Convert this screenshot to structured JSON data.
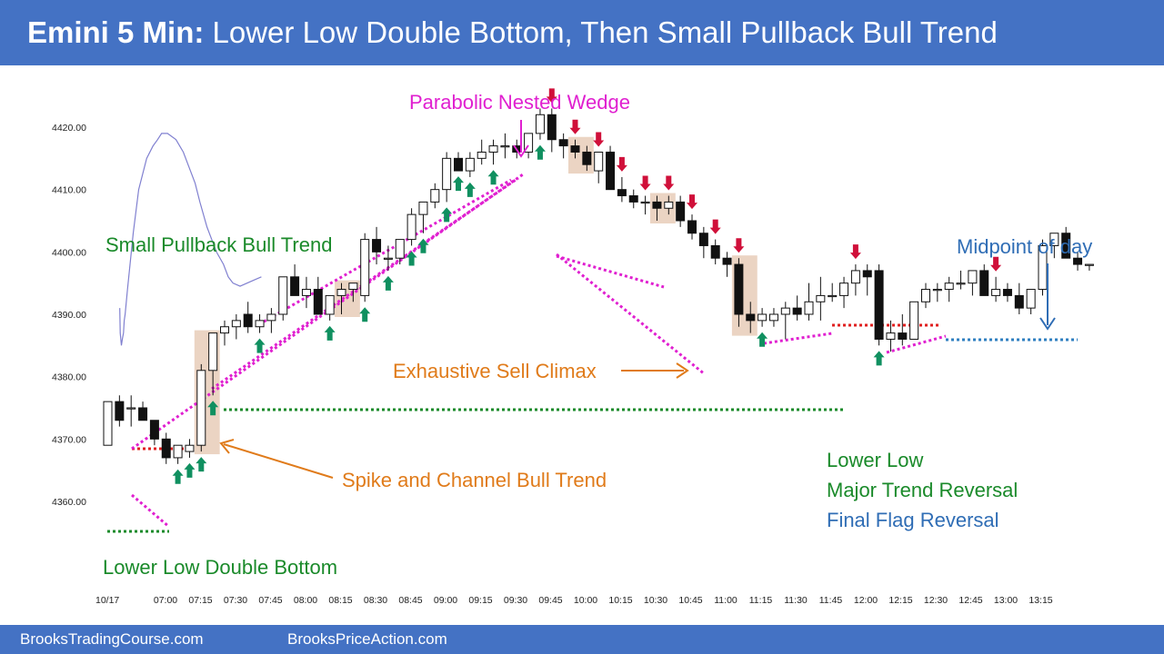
{
  "header": {
    "title_bold": "Emini 5 Min:",
    "title_rest": "Lower Low Double Bottom, Then Small Pullback Bull Trend"
  },
  "footer": {
    "left": "BrooksTradingCourse.com",
    "right": "BrooksPriceAction.com"
  },
  "colors": {
    "header_bg": "#4472c4",
    "green": "#1a8a2a",
    "magenta": "#e020d0",
    "orange": "#e07b1a",
    "blue": "#2f6db5",
    "red_arrow": "#d0103a",
    "green_arrow": "#109060",
    "ema": "#8080d0",
    "highlight": "#e8cdb8"
  },
  "chart_data": {
    "type": "candlestick",
    "date_label": "10/17",
    "ylim": [
      4360,
      4425
    ],
    "y_ticks": [
      {
        "value": 4360,
        "label": "4360.00"
      },
      {
        "value": 4370,
        "label": "4370.00"
      },
      {
        "value": 4380,
        "label": "4380.00"
      },
      {
        "value": 4390,
        "label": "4390.00"
      },
      {
        "value": 4400,
        "label": "4400.00"
      },
      {
        "value": 4410,
        "label": "4410.00"
      },
      {
        "value": 4420,
        "label": "4420.00"
      }
    ],
    "x_ticks": [
      "07:00",
      "07:15",
      "07:30",
      "07:45",
      "08:00",
      "08:15",
      "08:30",
      "08:45",
      "09:00",
      "09:15",
      "09:30",
      "09:45",
      "10:00",
      "10:15",
      "10:30",
      "10:45",
      "11:00",
      "11:15",
      "11:30",
      "11:45",
      "12:00",
      "12:15",
      "12:30",
      "12:45",
      "13:00",
      "13:15"
    ],
    "bars": [
      [
        4369,
        4376,
        4369,
        4376
      ],
      [
        4376,
        4377,
        4372,
        4373
      ],
      [
        4375,
        4377,
        4372,
        4375
      ],
      [
        4375,
        4376,
        4373,
        4373
      ],
      [
        4373,
        4373,
        4369,
        4370
      ],
      [
        4370,
        4371,
        4366,
        4367
      ],
      [
        4367,
        4369,
        4366,
        4369
      ],
      [
        4368,
        4370,
        4367,
        4369
      ],
      [
        4369,
        4382,
        4368,
        4381
      ],
      [
        4381,
        4387,
        4377,
        4387
      ],
      [
        4387,
        4389,
        4385,
        4388
      ],
      [
        4388,
        4390,
        4386,
        4389
      ],
      [
        4390,
        4392,
        4387,
        4388
      ],
      [
        4388,
        4390,
        4387,
        4389
      ],
      [
        4389,
        4391,
        4387,
        4390
      ],
      [
        4390,
        4396,
        4389,
        4396
      ],
      [
        4396,
        4398,
        4393,
        4393
      ],
      [
        4393,
        4396,
        4391,
        4394
      ],
      [
        4394,
        4396,
        4390,
        4390
      ],
      [
        4390,
        4393,
        4389,
        4393
      ],
      [
        4393,
        4395,
        4390,
        4394
      ],
      [
        4394,
        4395,
        4392,
        4395
      ],
      [
        4393,
        4403,
        4392,
        4402
      ],
      [
        4402,
        4404,
        4398,
        4400
      ],
      [
        4399,
        4401,
        4397,
        4399
      ],
      [
        4399,
        4402,
        4398,
        4402
      ],
      [
        4402,
        4407,
        4401,
        4406
      ],
      [
        4406,
        4408,
        4403,
        4408
      ],
      [
        4408,
        4411,
        4407,
        4410
      ],
      [
        4410,
        4416,
        4408,
        4415
      ],
      [
        4415,
        4416,
        4413,
        4413
      ],
      [
        4413,
        4416,
        4412,
        4415
      ],
      [
        4415,
        4418,
        4414,
        4416
      ],
      [
        4416,
        4418,
        4414,
        4417
      ],
      [
        4417,
        4419,
        4415,
        4417
      ],
      [
        4417,
        4418,
        4415,
        4416
      ],
      [
        4416,
        4419,
        4415,
        4419
      ],
      [
        4419,
        4423,
        4418,
        4422
      ],
      [
        4422,
        4423,
        4416,
        4418
      ],
      [
        4418,
        4419,
        4415,
        4417
      ],
      [
        4417,
        4418,
        4415,
        4416
      ],
      [
        4416,
        4417,
        4413,
        4414
      ],
      [
        4413,
        4416,
        4411,
        4416
      ],
      [
        4416,
        4417,
        4410,
        4410
      ],
      [
        4410,
        4412,
        4408,
        4409
      ],
      [
        4409,
        4410,
        4407,
        4408
      ],
      [
        4408,
        4409,
        4406,
        4408
      ],
      [
        4408,
        4409,
        4405,
        4407
      ],
      [
        4407,
        4409,
        4406,
        4408
      ],
      [
        4408,
        4409,
        4404,
        4405
      ],
      [
        4405,
        4406,
        4402,
        4403
      ],
      [
        4403,
        4404,
        4399,
        4401
      ],
      [
        4401,
        4402,
        4398,
        4399
      ],
      [
        4399,
        4400,
        4396,
        4398
      ],
      [
        4398,
        4399,
        4388,
        4390
      ],
      [
        4390,
        4392,
        4387,
        4389
      ],
      [
        4389,
        4391,
        4388,
        4390
      ],
      [
        4389,
        4391,
        4388,
        4390
      ],
      [
        4390,
        4392,
        4386,
        4391
      ],
      [
        4391,
        4393,
        4389,
        4390
      ],
      [
        4390,
        4395,
        4389,
        4392
      ],
      [
        4392,
        4396,
        4389,
        4393
      ],
      [
        4393,
        4395,
        4392,
        4393
      ],
      [
        4393,
        4396,
        4391,
        4395
      ],
      [
        4395,
        4398,
        4393,
        4397
      ],
      [
        4397,
        4398,
        4393,
        4396
      ],
      [
        4397,
        4398,
        4385,
        4386
      ],
      [
        4386,
        4389,
        4384,
        4387
      ],
      [
        4387,
        4390,
        4385,
        4386
      ],
      [
        4386,
        4392,
        4386,
        4392
      ],
      [
        4392,
        4395,
        4391,
        4394
      ],
      [
        4394,
        4395,
        4392,
        4394
      ],
      [
        4394,
        4396,
        4392,
        4395
      ],
      [
        4395,
        4397,
        4394,
        4395
      ],
      [
        4395,
        4397,
        4393,
        4397
      ],
      [
        4397,
        4398,
        4393,
        4393
      ],
      [
        4393,
        4396,
        4392,
        4394
      ],
      [
        4394,
        4395,
        4392,
        4393
      ],
      [
        4393,
        4395,
        4390,
        4391
      ],
      [
        4391,
        4394,
        4390,
        4394
      ],
      [
        4394,
        4402,
        4393,
        4401
      ],
      [
        4401,
        4403,
        4399,
        4403
      ],
      [
        4403,
        4404,
        4399,
        4399
      ],
      [
        4399,
        4400,
        4397,
        4398
      ],
      [
        4398,
        4398,
        4397,
        4398
      ]
    ],
    "ema": [
      [
        4391,
        4391
      ],
      [
        4393,
        4387
      ],
      [
        4398,
        4385
      ],
      [
        4402,
        4386
      ],
      [
        4407,
        4387
      ],
      [
        4410,
        4389
      ],
      [
        4414,
        4390
      ],
      [
        4424,
        4394
      ],
      [
        4432,
        4397
      ],
      [
        4448,
        4403
      ],
      [
        4471,
        4410
      ],
      [
        4505,
        4415
      ],
      [
        4532,
        4417
      ],
      [
        4551,
        4418
      ],
      [
        4568,
        4419
      ],
      [
        4593,
        4419
      ],
      [
        4629,
        4418
      ],
      [
        4660,
        4416
      ],
      [
        4690,
        4413
      ],
      [
        4710,
        4411
      ],
      [
        4730,
        4408
      ],
      [
        4760,
        4404
      ],
      [
        4800,
        4400
      ],
      [
        4830,
        4398
      ],
      [
        4850,
        4396
      ],
      [
        4870,
        4395
      ],
      [
        4900,
        4394.5
      ],
      [
        4960,
        4395.5
      ],
      [
        4990,
        4396
      ]
    ],
    "annotations": {
      "wedge_top": "Parabolic Nested Wedge",
      "small_pullback": "Small Pullback Bull Trend",
      "midpoint": "Midpoint of day",
      "sell_climax": "Exhaustive Sell Climax",
      "spike_channel": "Spike and Channel Bull Trend",
      "lower_low": "Lower Low",
      "major_reversal": "Major Trend Reversal",
      "final_flag": "Final Flag Reversal",
      "double_bottom": "Lower Low Double Bottom"
    },
    "up_arrow_bars": [
      6,
      7,
      8,
      9,
      13,
      19,
      22,
      24,
      26,
      27,
      29,
      30,
      31,
      33,
      37,
      56,
      66
    ],
    "down_arrow_bars": [
      38,
      40,
      42,
      44,
      46,
      48,
      50,
      52,
      54,
      64,
      76
    ],
    "highlighted_bars": [
      8,
      9,
      20,
      21,
      40,
      41,
      47,
      48,
      54,
      55
    ]
  }
}
